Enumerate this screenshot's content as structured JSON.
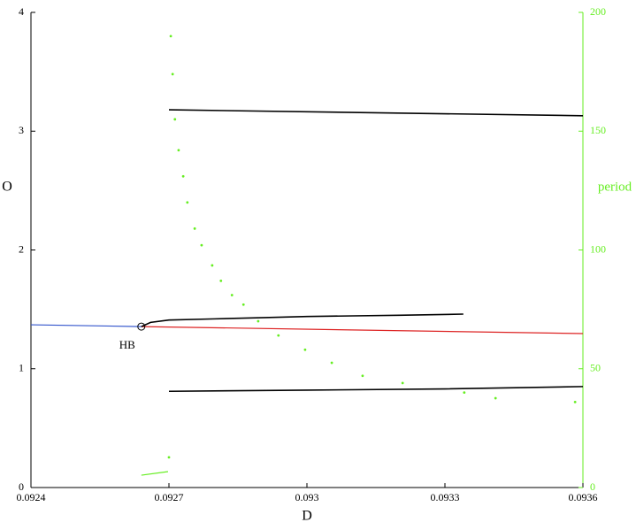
{
  "chart_data": {
    "type": "line",
    "x_label": "D",
    "y_label": "O",
    "y2_label": "period",
    "xlim": [
      0.0924,
      0.0936
    ],
    "xticks": [
      0.0924,
      0.0927,
      0.093,
      0.0933,
      0.0936
    ],
    "ylim": [
      0,
      4
    ],
    "yticks": [
      0,
      1,
      2,
      3,
      4
    ],
    "y2lim": [
      0,
      200
    ],
    "y2ticks": [
      0,
      50,
      100,
      150,
      200
    ],
    "y2_color": "#66ee22",
    "series": [
      {
        "color": "#3355cc",
        "style": "line",
        "x": [
          0.0924,
          0.09264
        ],
        "values": [
          1.37,
          1.355
        ]
      },
      {
        "color": "#dd2222",
        "style": "line",
        "x": [
          0.09264,
          0.0936
        ],
        "values": [
          1.355,
          1.296
        ]
      },
      {
        "color": "#000000",
        "style": "line",
        "x": [
          0.09264,
          0.09266,
          0.0927,
          0.0928,
          0.0929,
          0.093,
          0.0931,
          0.0932,
          0.09334
        ],
        "values": [
          1.355,
          1.39,
          1.41,
          1.42,
          1.43,
          1.44,
          1.445,
          1.45,
          1.46
        ]
      },
      {
        "color": "#000000",
        "style": "line",
        "x": [
          0.0927,
          0.0936
        ],
        "values": [
          3.18,
          3.13
        ]
      },
      {
        "color": "#000000",
        "style": "line",
        "x": [
          0.0927,
          0.093,
          0.0933,
          0.0936
        ],
        "values": [
          0.81,
          0.82,
          0.83,
          0.85
        ]
      },
      {
        "color": "#66ee22",
        "style": "points",
        "axis": "y2",
        "x": [
          0.092704,
          0.092708,
          0.092713,
          0.092721,
          0.092731,
          0.09274,
          0.092756,
          0.092771,
          0.092794,
          0.092813,
          0.092837,
          0.092862,
          0.092894,
          0.092938,
          0.092996,
          0.093054,
          0.093121,
          0.093208,
          0.093342,
          0.09341,
          0.093583,
          0.0927
        ],
        "values": [
          190,
          174,
          155,
          142,
          131,
          120,
          109,
          102,
          93.5,
          87,
          81,
          77,
          70,
          64,
          58,
          52.5,
          47,
          44,
          40,
          37.6,
          36,
          12.7
        ]
      },
      {
        "color": "#66ee22",
        "style": "line",
        "axis": "y2",
        "x": [
          0.09264,
          0.092698
        ],
        "values": [
          5.2,
          6.7
        ]
      }
    ],
    "annotations": [
      {
        "text": "HB",
        "x": 0.09264,
        "y": 1.355
      }
    ]
  }
}
